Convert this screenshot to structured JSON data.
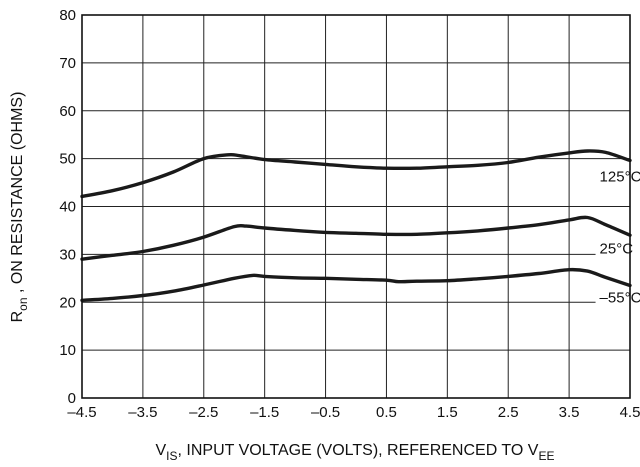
{
  "chart_data": {
    "type": "line",
    "xlabel": {
      "main": "V",
      "main_sub": "IS",
      "rest": ", INPUT VOLTAGE (VOLTS), REFERENCED TO V",
      "rest_sub": "EE"
    },
    "ylabel": {
      "main": "R",
      "main_sub": "on",
      "rest": " , ON RESISTANCE (OHMS)"
    },
    "xlim": [
      -4.5,
      4.5
    ],
    "ylim": [
      0,
      80
    ],
    "x_ticks": [
      "-4.5",
      "-3.5",
      "-2.5",
      "-1.5",
      "-0.5",
      "0.5",
      "1.5",
      "2.5",
      "3.5",
      "4.5"
    ],
    "y_ticks": [
      "0",
      "10",
      "20",
      "30",
      "40",
      "50",
      "60",
      "70",
      "80"
    ],
    "grid": true,
    "series": [
      {
        "name": "125°C",
        "label_pos": {
          "x": 4.0,
          "y": 45.2
        },
        "x": [
          -4.5,
          -4.0,
          -3.5,
          -3.0,
          -2.5,
          -2.1,
          -1.9,
          -1.5,
          -1.0,
          -0.5,
          0.0,
          0.5,
          1.0,
          1.5,
          2.0,
          2.5,
          3.0,
          3.5,
          3.8,
          4.1,
          4.5
        ],
        "y": [
          42.1,
          43.3,
          45.0,
          47.2,
          50.0,
          50.8,
          50.6,
          49.8,
          49.3,
          48.8,
          48.3,
          48.0,
          48.0,
          48.3,
          48.6,
          49.2,
          50.3,
          51.2,
          51.6,
          51.3,
          49.6
        ]
      },
      {
        "name": "25°C",
        "label_pos": {
          "x": 4.0,
          "y": 30.2
        },
        "x": [
          -4.5,
          -4.0,
          -3.5,
          -3.0,
          -2.5,
          -2.0,
          -1.8,
          -1.5,
          -1.0,
          -0.5,
          0.0,
          0.5,
          1.0,
          1.5,
          2.0,
          2.5,
          3.0,
          3.5,
          3.8,
          4.1,
          4.5
        ],
        "y": [
          29.0,
          29.8,
          30.6,
          31.9,
          33.6,
          35.8,
          35.9,
          35.5,
          35.0,
          34.6,
          34.4,
          34.2,
          34.2,
          34.5,
          34.9,
          35.5,
          36.2,
          37.2,
          37.7,
          36.2,
          34.0
        ]
      },
      {
        "name": "–55°C",
        "label_pos": {
          "x": 4.0,
          "y": 20.0
        },
        "x": [
          -4.5,
          -4.0,
          -3.5,
          -3.0,
          -2.5,
          -2.0,
          -1.7,
          -1.5,
          -1.0,
          -0.5,
          0.0,
          0.5,
          0.7,
          1.0,
          1.5,
          2.0,
          2.5,
          3.0,
          3.5,
          3.8,
          4.1,
          4.5
        ],
        "y": [
          20.4,
          20.8,
          21.4,
          22.3,
          23.6,
          25.0,
          25.6,
          25.4,
          25.1,
          25.0,
          24.8,
          24.6,
          24.3,
          24.4,
          24.5,
          24.9,
          25.4,
          26.0,
          26.8,
          26.5,
          25.2,
          23.5
        ]
      }
    ]
  }
}
